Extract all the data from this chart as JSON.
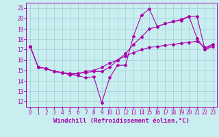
{
  "xlabel": "Windchill (Refroidissement éolien,°C)",
  "bg_color": "#c8eef0",
  "grid_color": "#a0ccd0",
  "line_color": "#aa00aa",
  "xlim": [
    -0.5,
    23.5
  ],
  "ylim": [
    11.5,
    21.5
  ],
  "xticks": [
    0,
    1,
    2,
    3,
    4,
    5,
    6,
    7,
    8,
    9,
    10,
    11,
    12,
    13,
    14,
    15,
    16,
    17,
    18,
    19,
    20,
    21,
    22,
    23
  ],
  "yticks": [
    12,
    13,
    14,
    15,
    16,
    17,
    18,
    19,
    20,
    21
  ],
  "line1_x": [
    0,
    1,
    2,
    3,
    4,
    5,
    6,
    7,
    8,
    9,
    10,
    11,
    12,
    13,
    14,
    15,
    16,
    17,
    18,
    19,
    20,
    21,
    22,
    23
  ],
  "line1_y": [
    17.3,
    15.3,
    15.2,
    14.9,
    14.8,
    14.6,
    14.5,
    14.3,
    14.4,
    11.9,
    14.3,
    15.5,
    15.5,
    18.3,
    20.3,
    20.9,
    19.2,
    19.5,
    19.7,
    19.8,
    20.2,
    18.1,
    17.0,
    17.3
  ],
  "line2_x": [
    0,
    1,
    2,
    3,
    4,
    5,
    6,
    7,
    8,
    9,
    10,
    11,
    12,
    13,
    14,
    15,
    16,
    17,
    18,
    19,
    20,
    21,
    22,
    23
  ],
  "line2_y": [
    17.3,
    15.3,
    15.2,
    14.9,
    14.8,
    14.7,
    14.7,
    14.9,
    15.0,
    15.3,
    15.7,
    16.0,
    16.4,
    16.7,
    17.0,
    17.2,
    17.3,
    17.4,
    17.5,
    17.6,
    17.7,
    17.8,
    17.2,
    17.5
  ],
  "line3_x": [
    0,
    1,
    2,
    3,
    4,
    5,
    6,
    7,
    8,
    9,
    10,
    11,
    12,
    13,
    14,
    15,
    16,
    17,
    18,
    19,
    20,
    21,
    22,
    23
  ],
  "line3_y": [
    17.3,
    15.3,
    15.2,
    14.9,
    14.8,
    14.6,
    14.7,
    14.8,
    14.9,
    14.9,
    15.3,
    16.0,
    16.6,
    17.5,
    18.2,
    19.0,
    19.2,
    19.5,
    19.7,
    19.9,
    20.2,
    20.2,
    17.0,
    17.5
  ],
  "marker": "D",
  "markersize": 2.0,
  "linewidth": 0.8,
  "xlabel_fontsize": 6.5,
  "tick_fontsize": 5.5
}
